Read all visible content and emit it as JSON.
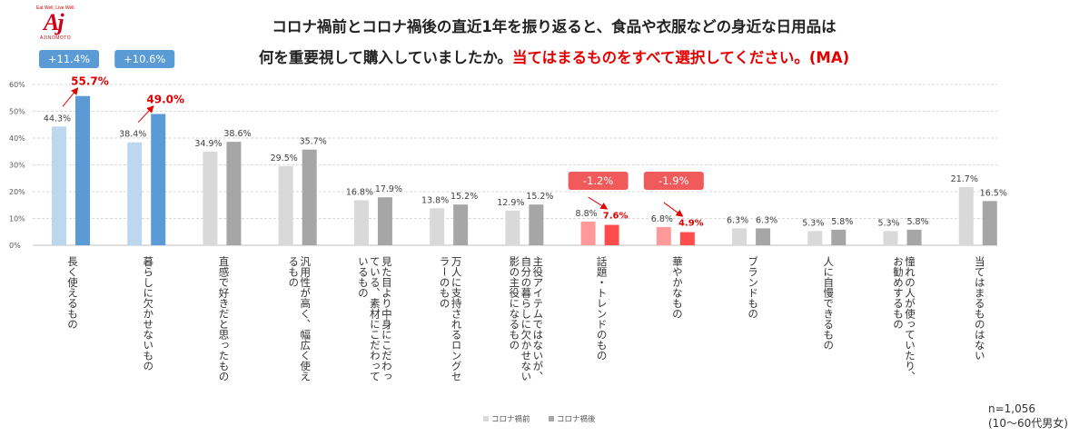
{
  "logo": {
    "tagline": "Eat Well, Live Well.",
    "mark": "Aj",
    "brand": "AJINOMOTO"
  },
  "title": {
    "line1": "コロナ禍前とコロナ禍後の直近1年を振り返ると、食品や衣服などの身近な日用品は",
    "line2_black": "何を重要視して購入していましたか。",
    "line2_red": "当てはまるものをすべて選択してください。(MA)"
  },
  "note": {
    "n": "n=1,056",
    "scope": "(10～60代男女)"
  },
  "colors": {
    "before_hl": "#bdd7ee",
    "after_hl": "#5b9bd5",
    "before_gray": "#d9d9d9",
    "after_gray": "#a6a6a6",
    "before_red": "#ff9999",
    "after_red": "#ff4d4d",
    "blue_badge": "#5b9bd5",
    "red_badge": "#f05a5a",
    "accent_red": "#e30000"
  },
  "chart_data": {
    "type": "bar",
    "ylim": [
      0,
      60
    ],
    "yticks": [
      "0%",
      "10%",
      "20%",
      "30%",
      "40%",
      "50%",
      "60%"
    ],
    "grid": true,
    "legend_position": "bottom",
    "categories": [
      "長く使えるもの",
      "暮らしに欠かせないもの",
      "直感で好きだと思ったもの",
      "汎用性が高く、幅広く使えるもの",
      "見た目より中身にこだわっている、素材にこだわっているもの",
      "万人に支持されるロングセラーのもの",
      "主役アイテムではないが、自分の暮らしに欠かせない影の主役になるもの",
      "話題・トレンドのもの",
      "華やかなもの",
      "ブランドもの",
      "人に自慢できるもの",
      "憧れの人が使っていたり、お勧めするもの",
      "当てはまるものはない"
    ],
    "category_lines": [
      [
        "長く使えるもの"
      ],
      [
        "暮らしに欠かせないもの"
      ],
      [
        "直感で好きだと思ったもの"
      ],
      [
        "汎用性が高く、幅広く使え",
        "るもの"
      ],
      [
        "見た目より中身にこだわっ",
        "ている、素材にこだわって",
        "いるもの"
      ],
      [
        "万人に支持されるロングセ",
        "ラーのもの"
      ],
      [
        "主役アイテムではないが、",
        "自分の暮らしに欠かせない",
        "影の主役になるもの"
      ],
      [
        "話題・トレンドのもの"
      ],
      [
        "華やかなもの"
      ],
      [
        "ブランドもの"
      ],
      [
        "人に自慢できるもの"
      ],
      [
        "憧れの人が使っていたり、",
        "お勧めするもの"
      ],
      [
        "当てはまるものはない"
      ]
    ],
    "series": [
      {
        "name": "コロナ禍前",
        "values": [
          44.3,
          38.4,
          34.9,
          29.5,
          16.8,
          13.8,
          12.9,
          8.8,
          6.8,
          6.3,
          5.3,
          5.3,
          21.7
        ],
        "labels": [
          "44.3%",
          "38.4%",
          "34.9%",
          "29.5%",
          "16.8%",
          "13.8%",
          "12.9%",
          "8.8%",
          "6.8%",
          "6.3%",
          "5.3%",
          "5.3%",
          "21.7%"
        ]
      },
      {
        "name": "コロナ禍後",
        "values": [
          55.7,
          49.0,
          38.6,
          35.7,
          17.9,
          15.2,
          15.2,
          7.6,
          4.9,
          6.3,
          5.8,
          5.8,
          16.5
        ],
        "labels": [
          "55.7%",
          "49.0%",
          "38.6%",
          "35.7%",
          "17.9%",
          "15.2%",
          "15.2%",
          "7.6%",
          "4.9%",
          "6.3%",
          "5.8%",
          "5.8%",
          "16.5%"
        ]
      }
    ],
    "highlights": {
      "up": [
        0,
        1
      ],
      "down": [
        7,
        8
      ]
    },
    "badges": [
      {
        "category": 0,
        "text": "+11.4%",
        "kind": "up"
      },
      {
        "category": 1,
        "text": "+10.6%",
        "kind": "up"
      },
      {
        "category": 7,
        "text": "-1.2%",
        "kind": "down"
      },
      {
        "category": 8,
        "text": "-1.9%",
        "kind": "down"
      }
    ]
  }
}
